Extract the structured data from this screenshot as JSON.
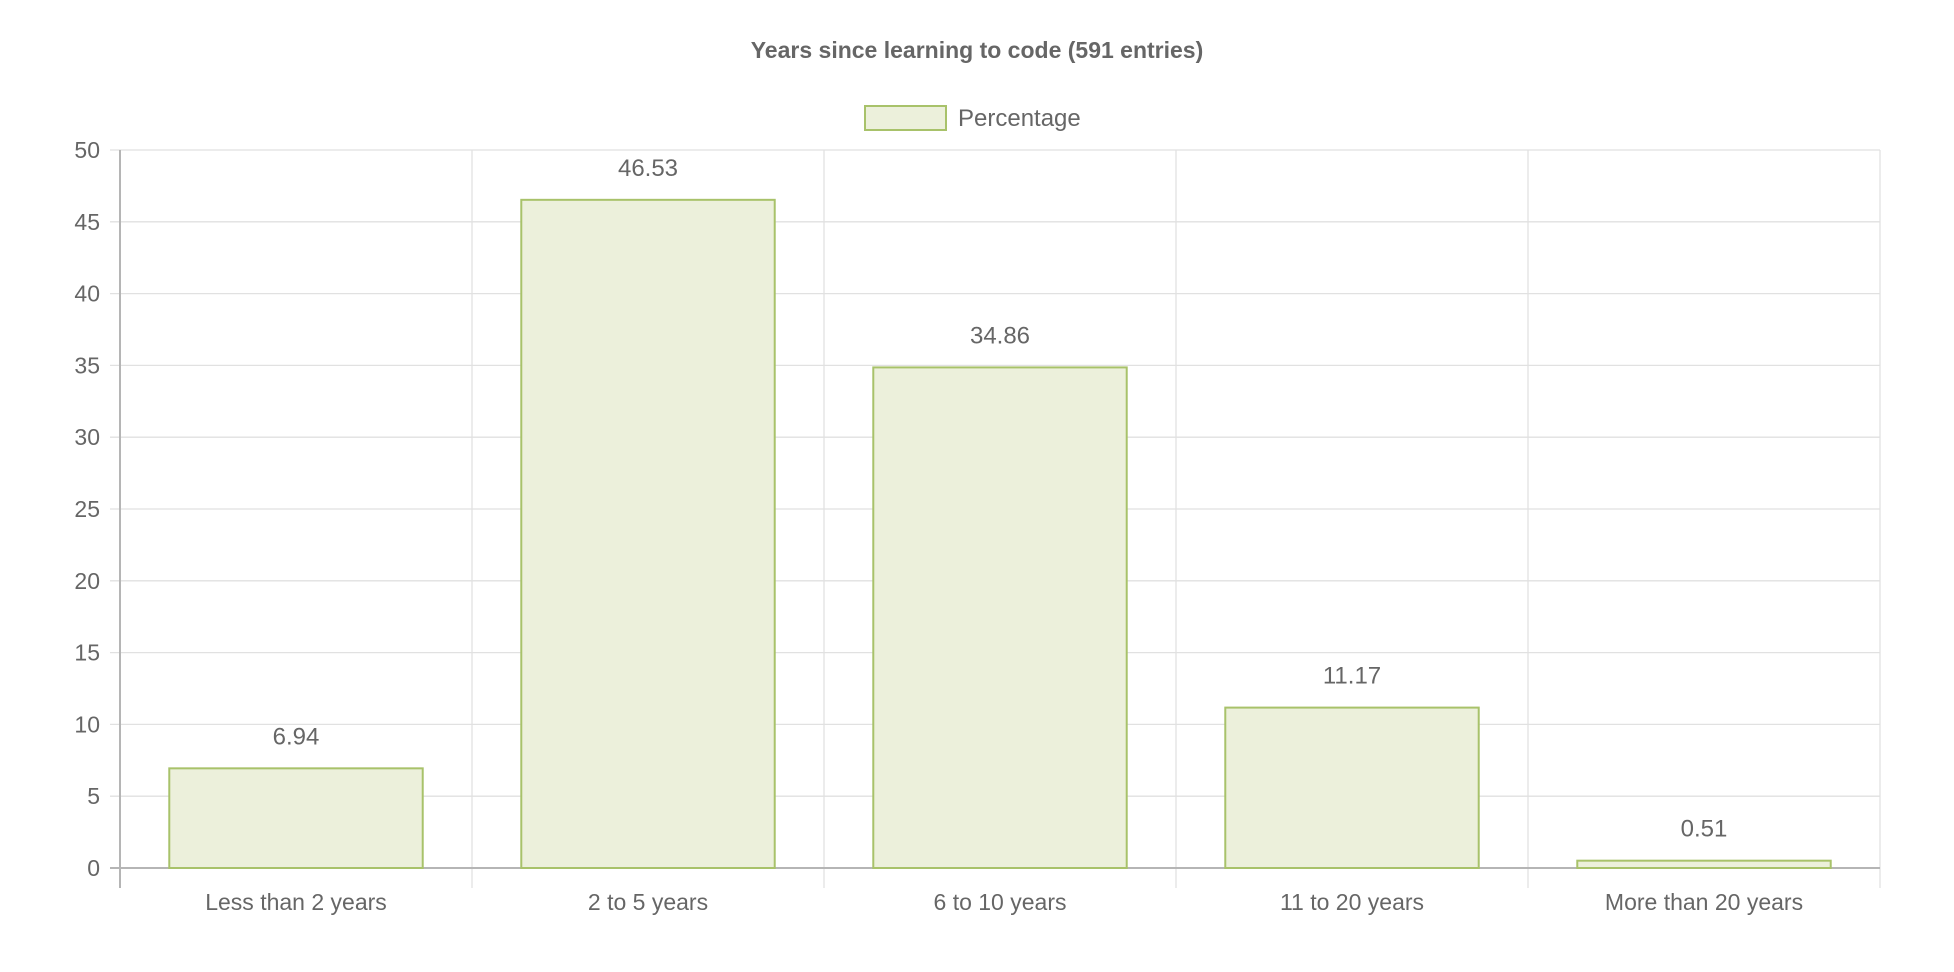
{
  "chart_data": {
    "type": "bar",
    "title": "Years since learning to code (591 entries)",
    "categories": [
      "Less than 2 years",
      "2 to 5 years",
      "6 to 10 years",
      "11 to 20 years",
      "More than 20 years"
    ],
    "series": [
      {
        "name": "Percentage",
        "values": [
          6.94,
          46.53,
          34.86,
          11.17,
          0.51
        ],
        "data_labels": [
          "6.94",
          "46.53",
          "34.86",
          "11.17",
          "0.51"
        ]
      }
    ],
    "yticks": [
      "0",
      "5",
      "10",
      "15",
      "20",
      "25",
      "30",
      "35",
      "40",
      "45",
      "50"
    ],
    "ylim": [
      0,
      50
    ],
    "xlabel": "",
    "ylabel": "",
    "grid": true,
    "legend_position": "top-center",
    "colors": {
      "bar_fill": "#ecf0db",
      "bar_border": "#a8c26a",
      "grid": "#e1e1e1",
      "axis": "#b5b5b5",
      "text": "#666666"
    }
  }
}
